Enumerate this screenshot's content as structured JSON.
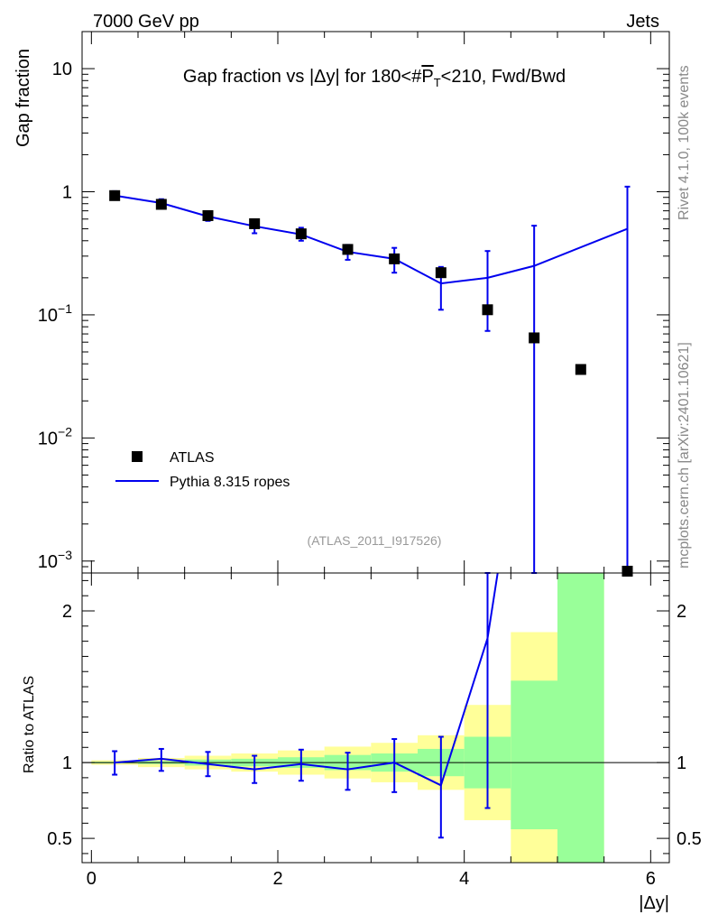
{
  "header": {
    "left": "7000 GeV pp",
    "right": "Jets"
  },
  "side": {
    "rivet": "Rivet 4.1.0,  100k events",
    "mcplots": "mcplots.cern.ch [arXiv:2401.10621]"
  },
  "colors": {
    "data": "#000000",
    "mc": "#0000ee",
    "band_inner": "#99ff99",
    "band_outer": "#ffff99"
  },
  "chart_data": [
    {
      "type": "scatter",
      "panel": "main",
      "title_parts": [
        "Gap fraction vs |",
        "Δ",
        "y| for 180<#",
        "P",
        "T",
        "<210, Fwd/Bwd"
      ],
      "ylabel": "Gap fraction",
      "yscale": "log",
      "ylim": [
        0.0008,
        20
      ],
      "xlim": [
        -0.1,
        6.2
      ],
      "y_tick_labels": [
        {
          "value": 10,
          "base": "10",
          "exp": ""
        },
        {
          "value": 1,
          "base": "1",
          "exp": ""
        },
        {
          "value": 0.1,
          "base": "10",
          "exp": "−1"
        },
        {
          "value": 0.01,
          "base": "10",
          "exp": "−2"
        },
        {
          "value": 0.001,
          "base": "10",
          "exp": "−3"
        }
      ],
      "legend": {
        "position": "bottom-left",
        "entries": [
          {
            "label": "ATLAS",
            "kind": "marker"
          },
          {
            "label": "Pythia 8.315 ropes",
            "kind": "line"
          }
        ]
      },
      "annotation": "(ATLAS_2011_I917526)",
      "series": [
        {
          "name": "ATLAS",
          "x": [
            0.25,
            0.75,
            1.25,
            1.75,
            2.25,
            2.75,
            3.25,
            3.75,
            4.25,
            4.75,
            5.25,
            5.75
          ],
          "y": [
            0.93,
            0.79,
            0.64,
            0.55,
            0.455,
            0.34,
            0.285,
            0.22,
            0.11,
            0.065,
            0.036,
            0.00078
          ]
        },
        {
          "name": "Pythia 8.315 ropes",
          "x": [
            0.25,
            0.75,
            1.25,
            1.75,
            2.25,
            2.75,
            3.25,
            3.75,
            4.25,
            4.75,
            5.75
          ],
          "y": [
            0.93,
            0.81,
            0.63,
            0.525,
            0.45,
            0.325,
            0.285,
            0.18,
            0.2,
            0.25,
            0.5
          ],
          "y_low": [
            0.86,
            0.75,
            0.58,
            0.46,
            0.4,
            0.28,
            0.22,
            0.11,
            0.074,
            0.0008,
            0.0008
          ],
          "y_high": [
            1.01,
            0.87,
            0.69,
            0.59,
            0.51,
            0.37,
            0.35,
            0.245,
            0.33,
            0.53,
            1.1
          ]
        }
      ]
    },
    {
      "type": "line",
      "panel": "ratio",
      "ylabel": "Ratio to ATLAS",
      "xlabel_parts": [
        "|",
        "Δ",
        "y|"
      ],
      "ylim": [
        0.34,
        2.25
      ],
      "xlim": [
        -0.1,
        6.2
      ],
      "x_ticks": [
        0,
        2,
        4,
        6
      ],
      "x_tick_labels": [
        "0",
        "2",
        "4",
        "6"
      ],
      "y_ticks": [
        0.5,
        1,
        2
      ],
      "y_tick_labels": [
        "0.5",
        "1",
        "2"
      ],
      "bands": {
        "edges": [
          0,
          0.5,
          1.0,
          1.5,
          2.0,
          2.5,
          3.0,
          3.5,
          4.0,
          4.5,
          5.0,
          5.5
        ],
        "inner_low": [
          0.995,
          0.99,
          0.98,
          0.975,
          0.965,
          0.95,
          0.94,
          0.91,
          0.83,
          0.56,
          0.3
        ],
        "inner_high": [
          1.005,
          1.01,
          1.02,
          1.025,
          1.035,
          1.05,
          1.06,
          1.09,
          1.17,
          1.54,
          2.3
        ],
        "outer_low": [
          0.985,
          0.97,
          0.955,
          0.94,
          0.92,
          0.895,
          0.87,
          0.82,
          0.62,
          0.3,
          0.3
        ],
        "outer_high": [
          1.015,
          1.03,
          1.045,
          1.06,
          1.08,
          1.105,
          1.13,
          1.18,
          1.38,
          1.86,
          2.3
        ]
      },
      "series": [
        {
          "name": "Pythia 8.315 ropes",
          "x": [
            0.25,
            0.75,
            1.25,
            1.75,
            2.25,
            2.75,
            3.25,
            3.75,
            4.25,
            4.75
          ],
          "y": [
            1.0,
            1.025,
            0.99,
            0.955,
            0.99,
            0.955,
            1.0,
            0.85,
            1.82,
            3.8
          ],
          "y_low": [
            0.92,
            0.945,
            0.91,
            0.865,
            0.88,
            0.82,
            0.805,
            0.505,
            0.7,
            null
          ],
          "y_high": [
            1.075,
            1.09,
            1.07,
            1.045,
            1.085,
            1.065,
            1.155,
            1.17,
            2.4,
            null
          ]
        }
      ]
    }
  ]
}
